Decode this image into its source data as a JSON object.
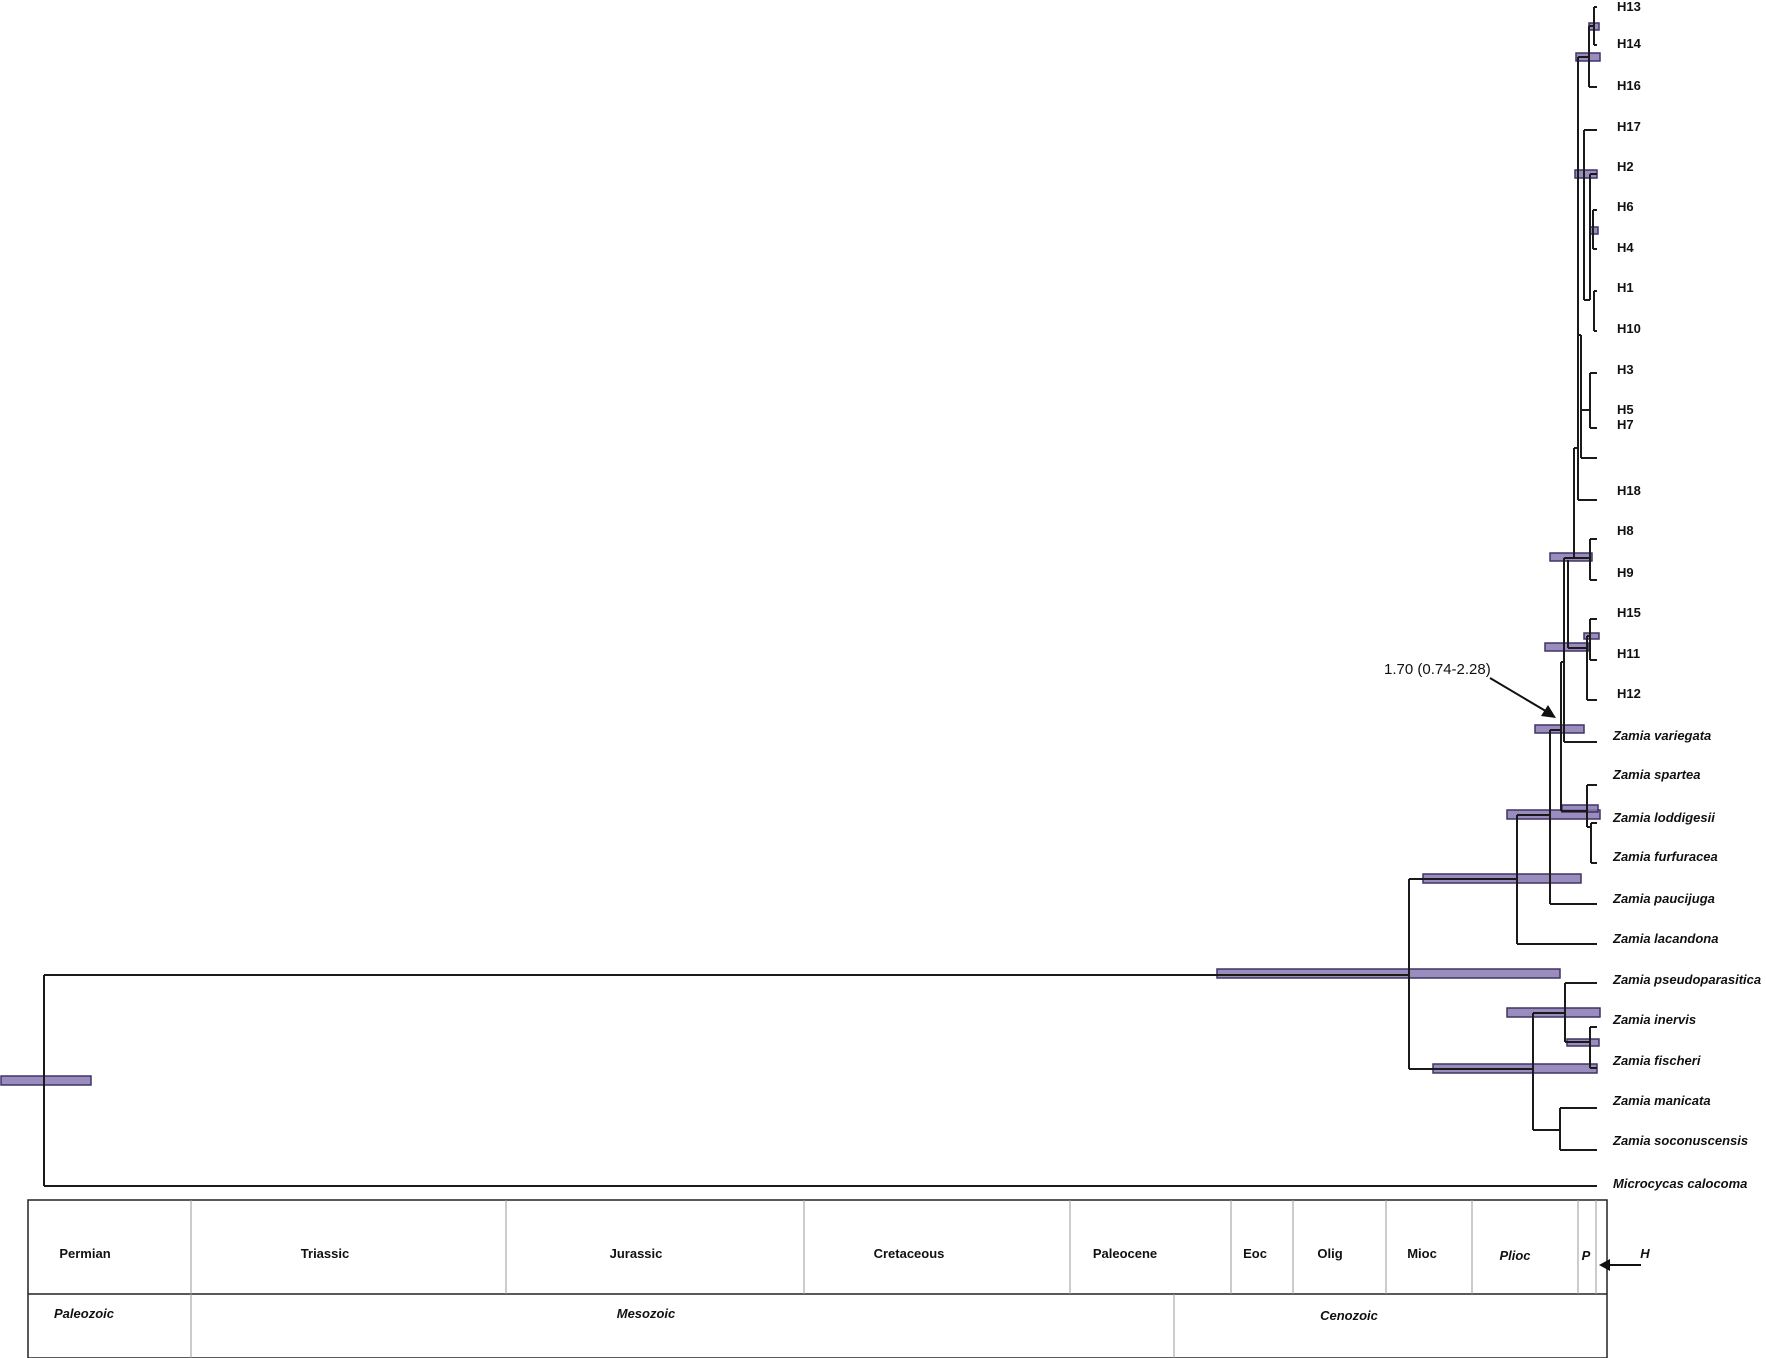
{
  "tips": [
    {
      "id": "H13",
      "label": "H13",
      "italic": false
    },
    {
      "id": "H14",
      "label": "H14",
      "italic": false
    },
    {
      "id": "H16",
      "label": "H16",
      "italic": false
    },
    {
      "id": "H17",
      "label": "H17",
      "italic": false
    },
    {
      "id": "H2",
      "label": "H2",
      "italic": false
    },
    {
      "id": "H6",
      "label": "H6",
      "italic": false
    },
    {
      "id": "H4",
      "label": "H4",
      "italic": false
    },
    {
      "id": "H1",
      "label": "H1",
      "italic": false
    },
    {
      "id": "H10",
      "label": "H10",
      "italic": false
    },
    {
      "id": "H3",
      "label": "H3",
      "italic": false
    },
    {
      "id": "H5",
      "label": "H5",
      "italic": false
    },
    {
      "id": "H7",
      "label": "H7",
      "italic": false
    },
    {
      "id": "H18",
      "label": "H18",
      "italic": false
    },
    {
      "id": "H8",
      "label": "H8",
      "italic": false
    },
    {
      "id": "H9",
      "label": "H9",
      "italic": false
    },
    {
      "id": "H15",
      "label": "H15",
      "italic": false
    },
    {
      "id": "H11",
      "label": "H11",
      "italic": false
    },
    {
      "id": "H12",
      "label": "H12",
      "italic": false
    },
    {
      "id": "z-variegata",
      "label": "Zamia variegata",
      "italic": true
    },
    {
      "id": "z-spartea",
      "label": "Zamia spartea",
      "italic": true
    },
    {
      "id": "z-loddigesii",
      "label": "Zamia loddigesii",
      "italic": true
    },
    {
      "id": "z-furfuracea",
      "label": "Zamia furfuracea",
      "italic": true
    },
    {
      "id": "z-paucijuga",
      "label": "Zamia paucijuga",
      "italic": true
    },
    {
      "id": "z-lacandona",
      "label": "Zamia lacandona",
      "italic": true
    },
    {
      "id": "z-pseudoparasitica",
      "label": "Zamia pseudoparasitica",
      "italic": true
    },
    {
      "id": "z-inervis",
      "label": "Zamia inervis",
      "italic": true
    },
    {
      "id": "z-fischeri",
      "label": "Zamia fischeri",
      "italic": true
    },
    {
      "id": "z-manicata",
      "label": "Zamia manicata",
      "italic": true
    },
    {
      "id": "z-soconuscensis",
      "label": "Zamia soconuscensis",
      "italic": true
    },
    {
      "id": "m-calocoma",
      "label": "Microcycas calocoma",
      "italic": true
    }
  ],
  "annotation": {
    "text": "1.70 (0.74-2.28)"
  },
  "timescale": {
    "periods": [
      "Permian",
      "Triassic",
      "Jurassic",
      "Cretaceous",
      "Paleocene",
      "Eoc",
      "Olig",
      "Mioc",
      "Plioc",
      "P",
      "H"
    ],
    "eras": [
      "Paleozoic",
      "Mesozoic",
      "Cenozoic"
    ]
  },
  "colors": {
    "hpd_bar": "#8878b0",
    "hpd_bar_stroke": "#3f3566",
    "line": "#1a1a1a"
  }
}
